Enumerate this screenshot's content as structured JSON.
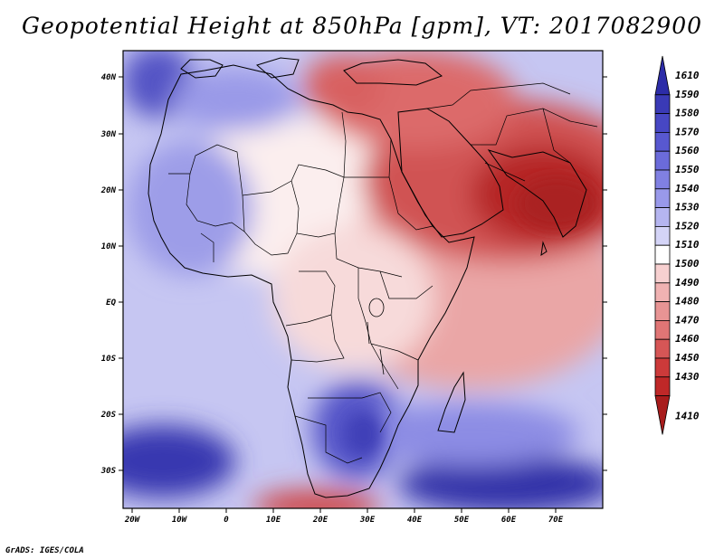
{
  "title": "Geopotential Height at 850hPa [gpm], VT: 2017082900",
  "footer": "GrADS: IGES/COLA",
  "map": {
    "lat_labels": [
      "40N",
      "30N",
      "20N",
      "10N",
      "EQ",
      "10S",
      "20S",
      "30S"
    ],
    "lon_labels": [
      "20W",
      "10W",
      "0",
      "10E",
      "20E",
      "30E",
      "40E",
      "50E",
      "60E",
      "70E"
    ]
  },
  "colorbar": {
    "labels": [
      "1610",
      "1590",
      "1580",
      "1570",
      "1560",
      "1550",
      "1540",
      "1530",
      "1520",
      "1510",
      "1500",
      "1490",
      "1480",
      "1470",
      "1460",
      "1450",
      "1430",
      "1410"
    ],
    "colors": [
      "#2c2ca8",
      "#3a3ab6",
      "#4747c4",
      "#5858d0",
      "#6b6bda",
      "#8080e2",
      "#9999ea",
      "#b5b5f0",
      "#d4d4f7",
      "#ffffff",
      "#f7d0d0",
      "#f0b2b2",
      "#e89494",
      "#e07575",
      "#d65656",
      "#cc3a3a",
      "#bf2828",
      "#a81c1c"
    ]
  },
  "colors": {
    "blue_dark": "#3232b0",
    "blue_mid": "#7c7ce0",
    "blue_light": "#c8c8f2",
    "neutral": "#ffffff",
    "red_light": "#f2c2c2",
    "red_mid": "#e07070",
    "red_dark": "#b82424"
  }
}
